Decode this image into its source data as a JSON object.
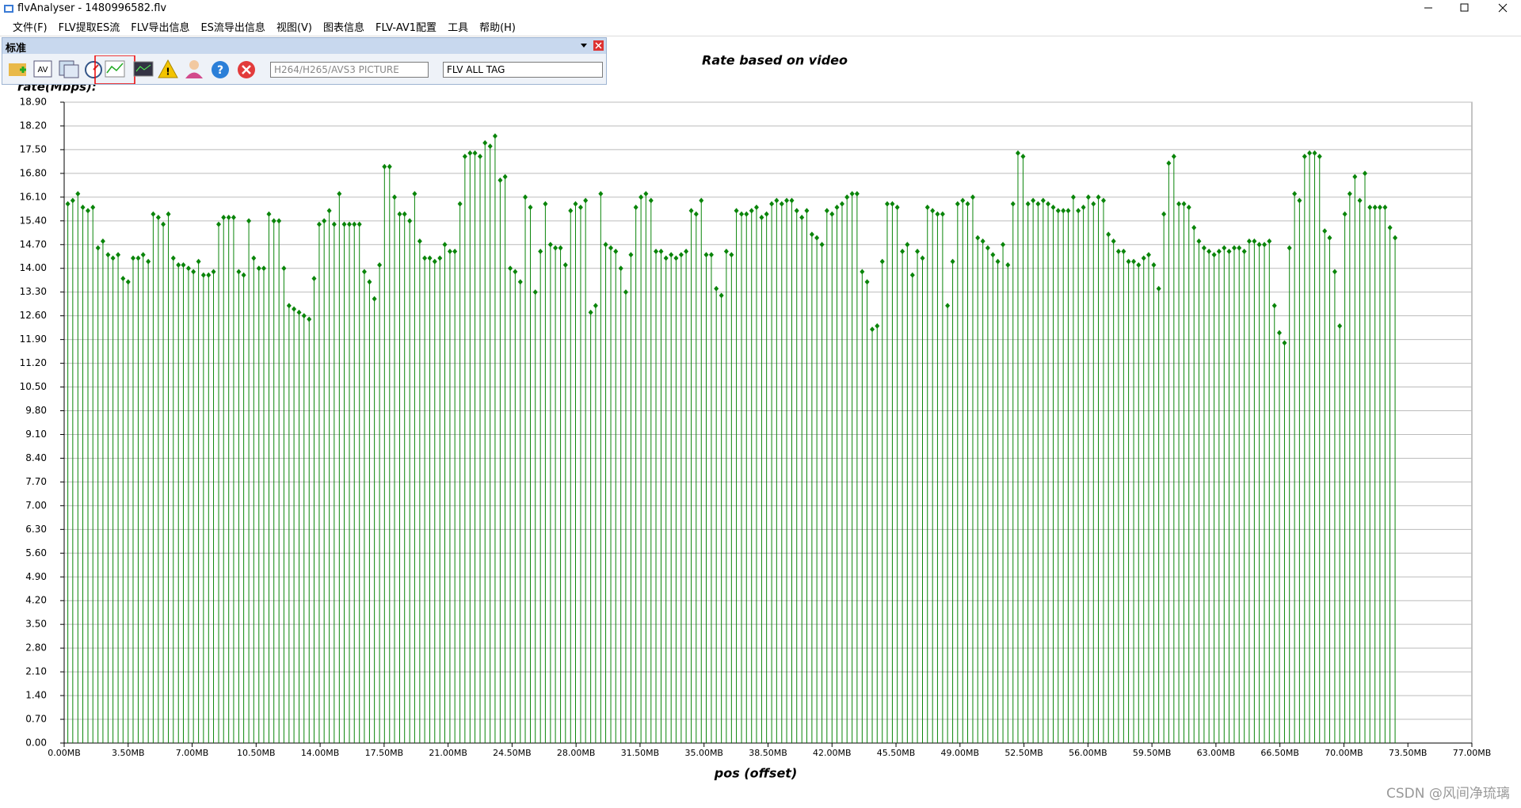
{
  "window_title": "flvAnalyser - 1480996582.flv",
  "menu": [
    "文件(F)",
    "FLV提取ES流",
    "FLV导出信息",
    "ES流导出信息",
    "视图(V)",
    "图表信息",
    "FLV-AV1配置",
    "工具",
    "帮助(H)"
  ],
  "toolbar": {
    "title": "标准",
    "combo1": "H264/H265/AVS3 PICTURE",
    "combo2": "FLV ALL TAG"
  },
  "watermark": "CSDN @风间净琉璃",
  "chart_data": {
    "type": "stem",
    "title": "Rate based on video",
    "y_label": "rate(Mbps):",
    "x_label": "pos (offset)",
    "color": "#0a850a",
    "grid": true,
    "xlim": [
      0,
      77
    ],
    "ylim": [
      0,
      18.9
    ],
    "xticks": [
      {
        "value": 0,
        "label": "0.00MB"
      },
      {
        "value": 3.5,
        "label": "3.50MB"
      },
      {
        "value": 7,
        "label": "7.00MB"
      },
      {
        "value": 10.5,
        "label": "10.50MB"
      },
      {
        "value": 14,
        "label": "14.00MB"
      },
      {
        "value": 17.5,
        "label": "17.50MB"
      },
      {
        "value": 21,
        "label": "21.00MB"
      },
      {
        "value": 24.5,
        "label": "24.50MB"
      },
      {
        "value": 28,
        "label": "28.00MB"
      },
      {
        "value": 31.5,
        "label": "31.50MB"
      },
      {
        "value": 35,
        "label": "35.00MB"
      },
      {
        "value": 38.5,
        "label": "38.50MB"
      },
      {
        "value": 42,
        "label": "42.00MB"
      },
      {
        "value": 45.5,
        "label": "45.50MB"
      },
      {
        "value": 49,
        "label": "49.00MB"
      },
      {
        "value": 52.5,
        "label": "52.50MB"
      },
      {
        "value": 56,
        "label": "56.00MB"
      },
      {
        "value": 59.5,
        "label": "59.50MB"
      },
      {
        "value": 63,
        "label": "63.00MB"
      },
      {
        "value": 66.5,
        "label": "66.50MB"
      },
      {
        "value": 70,
        "label": "70.00MB"
      },
      {
        "value": 73.5,
        "label": "73.50MB"
      },
      {
        "value": 77,
        "label": "77.00MB"
      }
    ],
    "yticks": [
      {
        "value": 0,
        "label": "0.00"
      },
      {
        "value": 0.7,
        "label": "0.70"
      },
      {
        "value": 1.4,
        "label": "1.40"
      },
      {
        "value": 2.1,
        "label": "2.10"
      },
      {
        "value": 2.8,
        "label": "2.80"
      },
      {
        "value": 3.5,
        "label": "3.50"
      },
      {
        "value": 4.2,
        "label": "4.20"
      },
      {
        "value": 4.9,
        "label": "4.90"
      },
      {
        "value": 5.6,
        "label": "5.60"
      },
      {
        "value": 6.3,
        "label": "6.30"
      },
      {
        "value": 7,
        "label": "7.00"
      },
      {
        "value": 7.7,
        "label": "7.70"
      },
      {
        "value": 8.4,
        "label": "8.40"
      },
      {
        "value": 9.1,
        "label": "9.10"
      },
      {
        "value": 9.8,
        "label": "9.80"
      },
      {
        "value": 10.5,
        "label": "10.50"
      },
      {
        "value": 11.2,
        "label": "11.20"
      },
      {
        "value": 11.9,
        "label": "11.90"
      },
      {
        "value": 12.6,
        "label": "12.60"
      },
      {
        "value": 13.3,
        "label": "13.30"
      },
      {
        "value": 14,
        "label": "14.00"
      },
      {
        "value": 14.7,
        "label": "14.70"
      },
      {
        "value": 15.4,
        "label": "15.40"
      },
      {
        "value": 16.1,
        "label": "16.10"
      },
      {
        "value": 16.8,
        "label": "16.80"
      },
      {
        "value": 17.5,
        "label": "17.50"
      },
      {
        "value": 18.2,
        "label": "18.20"
      },
      {
        "value": 18.9,
        "label": "18.90"
      }
    ],
    "x": [
      0.2,
      0.47,
      0.75,
      1.02,
      1.3,
      1.57,
      1.85,
      2.12,
      2.4,
      2.67,
      2.95,
      3.22,
      3.5,
      3.77,
      4.05,
      4.32,
      4.6,
      4.87,
      5.15,
      5.42,
      5.7,
      5.97,
      6.25,
      6.52,
      6.8,
      7.07,
      7.35,
      7.62,
      7.9,
      8.17,
      8.45,
      8.72,
      9.0,
      9.27,
      9.55,
      9.82,
      10.1,
      10.37,
      10.65,
      10.92,
      11.2,
      11.47,
      11.75,
      12.02,
      12.3,
      12.57,
      12.85,
      13.12,
      13.4,
      13.67,
      13.95,
      14.22,
      14.5,
      14.77,
      15.05,
      15.32,
      15.6,
      15.87,
      16.15,
      16.42,
      16.7,
      16.97,
      17.25,
      17.52,
      17.8,
      18.07,
      18.35,
      18.62,
      18.9,
      19.17,
      19.45,
      19.72,
      20.0,
      20.27,
      20.55,
      20.82,
      21.1,
      21.37,
      21.65,
      21.92,
      22.2,
      22.47,
      22.75,
      23.02,
      23.3,
      23.57,
      23.85,
      24.12,
      24.4,
      24.67,
      24.95,
      25.22,
      25.5,
      25.77,
      26.05,
      26.32,
      26.6,
      26.87,
      27.15,
      27.42,
      27.7,
      27.97,
      28.25,
      28.52,
      28.8,
      29.07,
      29.35,
      29.62,
      29.9,
      30.17,
      30.45,
      30.72,
      31.0,
      31.27,
      31.55,
      31.82,
      32.1,
      32.37,
      32.65,
      32.92,
      33.2,
      33.47,
      33.75,
      34.02,
      34.3,
      34.57,
      34.85,
      35.12,
      35.4,
      35.67,
      35.95,
      36.22,
      36.5,
      36.77,
      37.05,
      37.32,
      37.6,
      37.87,
      38.15,
      38.42,
      38.7,
      38.97,
      39.25,
      39.52,
      39.8,
      40.07,
      40.35,
      40.62,
      40.9,
      41.17,
      41.45,
      41.72,
      42.0,
      42.27,
      42.55,
      42.82,
      43.1,
      43.37,
      43.65,
      43.92,
      44.2,
      44.47,
      44.75,
      45.02,
      45.3,
      45.57,
      45.85,
      46.12,
      46.4,
      46.67,
      46.95,
      47.22,
      47.5,
      47.77,
      48.05,
      48.32,
      48.6,
      48.87,
      49.15,
      49.42,
      49.7,
      49.97,
      50.25,
      50.52,
      50.8,
      51.07,
      51.35,
      51.62,
      51.9,
      52.17,
      52.45,
      52.72,
      53.0,
      53.27,
      53.55,
      53.82,
      54.1,
      54.37,
      54.65,
      54.92,
      55.2,
      55.47,
      55.75,
      56.02,
      56.3,
      56.57,
      56.85,
      57.12,
      57.4,
      57.67,
      57.95,
      58.22,
      58.5,
      58.77,
      59.05,
      59.32,
      59.6,
      59.87,
      60.15,
      60.42,
      60.7,
      60.97,
      61.25,
      61.52,
      61.8,
      62.07,
      62.35,
      62.62,
      62.9,
      63.17,
      63.45,
      63.72,
      64.0,
      64.27,
      64.55,
      64.82,
      65.1,
      65.37,
      65.65,
      65.92,
      66.2,
      66.47,
      66.75,
      67.02,
      67.3,
      67.57,
      67.85,
      68.12,
      68.4,
      68.67,
      68.95,
      69.22,
      69.5,
      69.77,
      70.05,
      70.32,
      70.6,
      70.87,
      71.15,
      71.42,
      71.7,
      71.97,
      72.25,
      72.52,
      72.8
    ],
    "values": [
      15.9,
      16.0,
      16.2,
      15.8,
      15.7,
      15.8,
      14.6,
      14.8,
      14.4,
      14.3,
      14.4,
      13.7,
      13.6,
      14.3,
      14.3,
      14.4,
      14.2,
      15.6,
      15.5,
      15.3,
      15.6,
      14.3,
      14.1,
      14.1,
      14.0,
      13.9,
      14.2,
      13.8,
      13.8,
      13.9,
      15.3,
      15.5,
      15.5,
      15.5,
      13.9,
      13.8,
      15.4,
      14.3,
      14.0,
      14.0,
      15.6,
      15.4,
      15.4,
      14.0,
      12.9,
      12.8,
      12.7,
      12.6,
      12.5,
      13.7,
      15.3,
      15.4,
      15.7,
      15.3,
      16.2,
      15.3,
      15.3,
      15.3,
      15.3,
      13.9,
      13.6,
      13.1,
      14.1,
      17.0,
      17.0,
      16.1,
      15.6,
      15.6,
      15.4,
      16.2,
      14.8,
      14.3,
      14.3,
      14.2,
      14.3,
      14.7,
      14.5,
      14.5,
      15.9,
      17.3,
      17.4,
      17.4,
      17.3,
      17.7,
      17.6,
      17.9,
      16.6,
      16.7,
      14.0,
      13.9,
      13.6,
      16.1,
      15.8,
      13.3,
      14.5,
      15.9,
      14.7,
      14.6,
      14.6,
      14.1,
      15.7,
      15.9,
      15.8,
      16.0,
      12.7,
      12.9,
      16.2,
      14.7,
      14.6,
      14.5,
      14.0,
      13.3,
      14.4,
      15.8,
      16.1,
      16.2,
      16.0,
      14.5,
      14.5,
      14.3,
      14.4,
      14.3,
      14.4,
      14.5,
      15.7,
      15.6,
      16.0,
      14.4,
      14.4,
      13.4,
      13.2,
      14.5,
      14.4,
      15.7,
      15.6,
      15.6,
      15.7,
      15.8,
      15.5,
      15.6,
      15.9,
      16.0,
      15.9,
      16.0,
      16.0,
      15.7,
      15.5,
      15.7,
      15.0,
      14.9,
      14.7,
      15.7,
      15.6,
      15.8,
      15.9,
      16.1,
      16.2,
      16.2,
      13.9,
      13.6,
      12.2,
      12.3,
      14.2,
      15.9,
      15.9,
      15.8,
      14.5,
      14.7,
      13.8,
      14.5,
      14.3,
      15.8,
      15.7,
      15.6,
      15.6,
      12.9,
      14.2,
      15.9,
      16.0,
      15.9,
      16.1,
      14.9,
      14.8,
      14.6,
      14.4,
      14.2,
      14.7,
      14.1,
      15.9,
      17.4,
      17.3,
      15.9,
      16.0,
      15.9,
      16.0,
      15.9,
      15.8,
      15.7,
      15.7,
      15.7,
      16.1,
      15.7,
      15.8,
      16.1,
      15.9,
      16.1,
      16.0,
      15.0,
      14.8,
      14.5,
      14.5,
      14.2,
      14.2,
      14.1,
      14.3,
      14.4,
      14.1,
      13.4,
      15.6,
      17.1,
      17.3,
      15.9,
      15.9,
      15.8,
      15.2,
      14.8,
      14.6,
      14.5,
      14.4,
      14.5,
      14.6,
      14.5,
      14.6,
      14.6,
      14.5,
      14.8,
      14.8,
      14.7,
      14.7,
      14.8,
      12.9,
      12.1,
      11.8,
      14.6,
      16.2,
      16.0,
      17.3,
      17.4,
      17.4,
      17.3,
      15.1,
      14.9,
      13.9,
      12.3,
      15.6,
      16.2,
      16.7,
      16.0,
      16.8,
      15.8,
      15.8,
      15.8,
      15.8,
      15.2,
      14.9
    ]
  }
}
